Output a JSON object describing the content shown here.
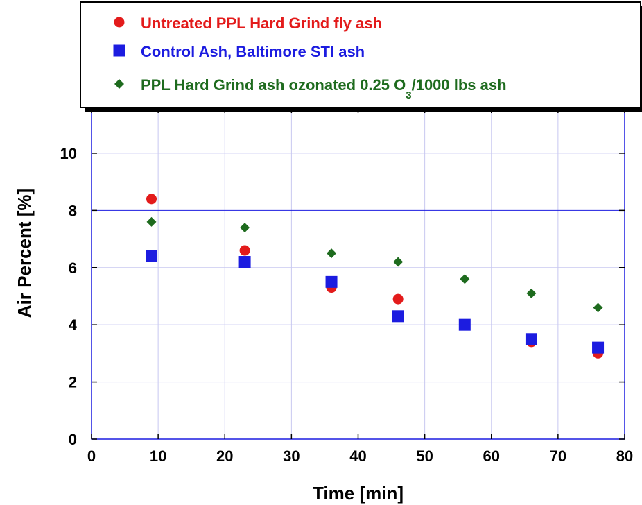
{
  "chart_data": {
    "type": "scatter",
    "xlabel": "Time [min]",
    "ylabel": "Air Percent [%]",
    "xlim": [
      0,
      80
    ],
    "ylim": [
      0,
      11.6
    ],
    "x_ticks": [
      "0",
      "10",
      "20",
      "30",
      "40",
      "50",
      "60",
      "70",
      "80"
    ],
    "y_ticks": [
      "0",
      "2",
      "4",
      "6",
      "8",
      "10"
    ],
    "grid": true,
    "legend_position": "top",
    "series": [
      {
        "name": "Untreated PPL Hard Grind fly ash",
        "marker": "circle",
        "color": "#e31b1b",
        "x": [
          9,
          23,
          36,
          46,
          56,
          66,
          76
        ],
        "y": [
          8.4,
          6.6,
          5.3,
          4.9,
          4.0,
          3.4,
          3.0
        ]
      },
      {
        "name": "Control Ash, Baltimore STI ash",
        "marker": "square",
        "color": "#1c1ce0",
        "x": [
          9,
          23,
          36,
          46,
          56,
          66,
          76
        ],
        "y": [
          6.4,
          6.2,
          5.5,
          4.3,
          4.0,
          3.5,
          3.2
        ]
      },
      {
        "name": "PPL Hard Grind ash ozonated 0.25 O3/1000 lbs ash",
        "name_parts": [
          "PPL Hard Grind ash ozonated 0.25 O",
          "3",
          "/1000 lbs ash"
        ],
        "marker": "diamond",
        "color": "#1e6b1e",
        "x": [
          9,
          23,
          36,
          46,
          56,
          66,
          76
        ],
        "y": [
          7.6,
          7.4,
          6.5,
          6.2,
          5.6,
          5.1,
          4.6
        ]
      }
    ]
  }
}
